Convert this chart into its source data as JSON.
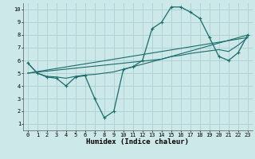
{
  "xlabel": "Humidex (Indice chaleur)",
  "bg_color": "#cce8e8",
  "grid_color": "#aad0d0",
  "line_color": "#1a6b6b",
  "xlim": [
    -0.5,
    23.5
  ],
  "ylim": [
    0.5,
    10.5
  ],
  "xticks": [
    0,
    1,
    2,
    3,
    4,
    5,
    6,
    7,
    8,
    9,
    10,
    11,
    12,
    13,
    14,
    15,
    16,
    17,
    18,
    19,
    20,
    21,
    22,
    23
  ],
  "yticks": [
    1,
    2,
    3,
    4,
    5,
    6,
    7,
    8,
    9,
    10
  ],
  "line1_x": [
    0,
    1,
    2,
    3,
    4,
    5,
    6,
    7,
    8,
    9,
    10,
    11,
    12,
    13,
    14,
    15,
    16,
    17,
    18,
    19,
    20,
    21,
    22,
    23
  ],
  "line1_y": [
    5.8,
    5.0,
    4.7,
    4.6,
    4.0,
    4.7,
    4.8,
    3.0,
    1.5,
    2.0,
    5.3,
    5.5,
    6.0,
    8.5,
    9.0,
    10.2,
    10.2,
    9.8,
    9.3,
    7.8,
    6.3,
    6.0,
    6.6,
    8.0
  ],
  "line2_x": [
    0,
    1,
    2,
    3,
    4,
    5,
    6,
    7,
    8,
    9,
    10,
    11,
    12,
    13,
    14,
    15,
    16,
    17,
    18,
    19,
    20,
    21,
    22,
    23
  ],
  "line2_y": [
    5.8,
    5.0,
    4.75,
    4.7,
    4.6,
    4.75,
    4.85,
    4.9,
    5.0,
    5.1,
    5.3,
    5.5,
    5.7,
    5.9,
    6.1,
    6.3,
    6.4,
    6.55,
    6.65,
    6.75,
    6.85,
    6.7,
    7.2,
    7.8
  ],
  "line3_x": [
    0,
    23
  ],
  "line3_y": [
    5.0,
    7.8
  ],
  "line4_x": [
    0,
    14,
    23
  ],
  "line4_y": [
    5.0,
    6.1,
    8.0
  ],
  "xlabel_fontsize": 6.5,
  "tick_fontsize": 5.0
}
